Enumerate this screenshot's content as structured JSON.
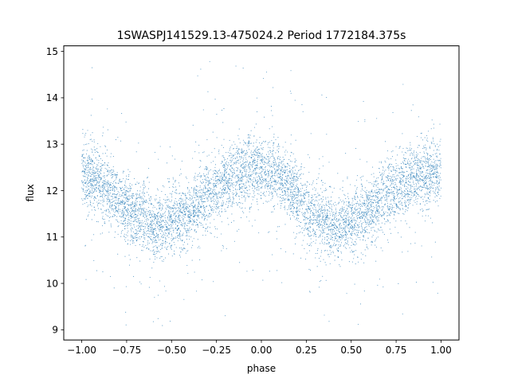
{
  "chart_data": {
    "type": "scatter",
    "title": "1SWASPJ141529.13-475024.2 Period 1772184.375s",
    "xlabel": "phase",
    "ylabel": "flux",
    "xlim": [
      -1.1,
      1.1
    ],
    "ylim": [
      8.78,
      15.12
    ],
    "xticks": [
      -1.0,
      -0.75,
      -0.5,
      -0.25,
      0.0,
      0.25,
      0.5,
      0.75,
      1.0
    ],
    "xtick_labels": [
      "−1.00",
      "−0.75",
      "−0.50",
      "−0.25",
      "0.00",
      "0.25",
      "0.50",
      "0.75",
      "1.00"
    ],
    "yticks": [
      9,
      10,
      11,
      12,
      13,
      14,
      15
    ],
    "ytick_labels": [
      "9",
      "10",
      "11",
      "12",
      "13",
      "14",
      "15"
    ],
    "grid": false,
    "series": [
      {
        "marker_color": "#1f77b4",
        "x_range": [
          -1.0,
          1.0
        ],
        "phase_profile": {
          "x": [
            -1.0,
            -0.9,
            -0.8,
            -0.75,
            -0.7,
            -0.65,
            -0.6,
            -0.5,
            -0.4,
            -0.35,
            -0.3,
            -0.25,
            -0.2,
            -0.1,
            0.0,
            0.1,
            0.2,
            0.25,
            0.3,
            0.35,
            0.4,
            0.5,
            0.6,
            0.65,
            0.7,
            0.75,
            0.8,
            0.9,
            1.0
          ],
          "mean": [
            12.35,
            12.2,
            11.8,
            11.6,
            11.45,
            11.5,
            11.2,
            11.3,
            11.5,
            11.7,
            11.95,
            12.0,
            12.2,
            12.4,
            12.45,
            12.3,
            11.9,
            11.6,
            11.45,
            11.4,
            11.2,
            11.3,
            11.5,
            11.75,
            11.95,
            12.0,
            12.2,
            12.35,
            12.4
          ]
        },
        "typical_scatter": 0.35,
        "y_extent": [
          9.05,
          14.8
        ]
      }
    ]
  }
}
